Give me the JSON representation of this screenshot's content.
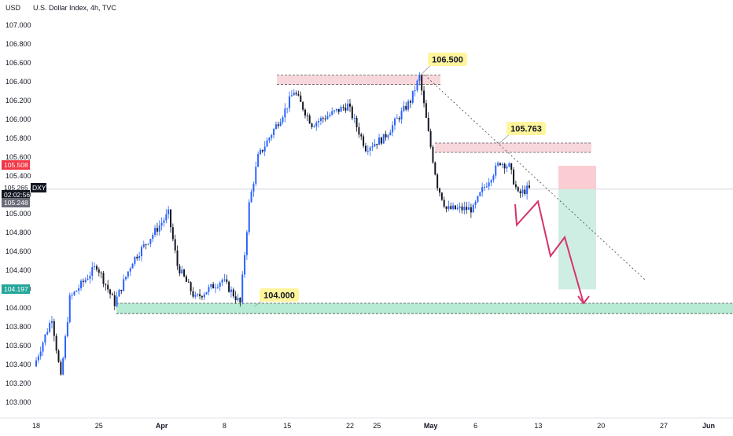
{
  "header": {
    "currency": "USD",
    "symbol": "U.S. Dollar Index, 4h, TVC"
  },
  "colors": {
    "bull": "#2962ff",
    "bear": "#131722",
    "resistance_fill": "#f8d7dc",
    "support_fill": "#b7ebd3",
    "risk_fill": "#f9cdd1",
    "reward_fill": "#cfeee3",
    "projection": "#d6336c",
    "callout_bg": "#fff59d",
    "price_red": "#f23645",
    "price_green": "#26a69a"
  },
  "chart_data": {
    "type": "candlestick",
    "title": "U.S. Dollar Index, 4h, TVC",
    "yticks": [
      "107.000",
      "106.800",
      "106.600",
      "106.400",
      "106.200",
      "106.000",
      "105.800",
      "105.600",
      "105.400",
      "105.200",
      "105.000",
      "104.800",
      "104.600",
      "104.400",
      "104.200",
      "104.000",
      "103.800",
      "103.600",
      "103.400",
      "103.200",
      "103.000"
    ],
    "xticks": [
      "18",
      "25",
      "Apr",
      "8",
      "15",
      "22",
      "25",
      "May",
      "6",
      "13",
      "20",
      "27",
      "Jun"
    ],
    "ylim": [
      102.9,
      107.2
    ],
    "anchor_points": [
      {
        "date": "Mar 18",
        "price": 103.38
      },
      {
        "date": "Mar 20",
        "price": 103.9
      },
      {
        "date": "Mar 21",
        "price": 103.25
      },
      {
        "date": "Mar 22",
        "price": 104.1
      },
      {
        "date": "Mar 25",
        "price": 104.45
      },
      {
        "date": "Mar 27",
        "price": 104.05
      },
      {
        "date": "Mar 29",
        "price": 104.5
      },
      {
        "date": "Apr 2",
        "price": 105.0
      },
      {
        "date": "Apr 3",
        "price": 104.45
      },
      {
        "date": "Apr 5",
        "price": 104.1
      },
      {
        "date": "Apr 8",
        "price": 104.3
      },
      {
        "date": "Apr 10",
        "price": 104.05
      },
      {
        "date": "Apr 11",
        "price": 105.1
      },
      {
        "date": "Apr 12",
        "price": 105.6
      },
      {
        "date": "Apr 15",
        "price": 106.1
      },
      {
        "date": "Apr 16",
        "price": 106.3
      },
      {
        "date": "Apr 18",
        "price": 105.95
      },
      {
        "date": "Apr 22",
        "price": 106.15
      },
      {
        "date": "Apr 24",
        "price": 105.7
      },
      {
        "date": "Apr 26",
        "price": 105.8
      },
      {
        "date": "Apr 29",
        "price": 106.2
      },
      {
        "date": "Apr 30",
        "price": 106.45
      },
      {
        "date": "May 1",
        "price": 105.85
      },
      {
        "date": "May 2",
        "price": 105.3
      },
      {
        "date": "May 3",
        "price": 105.05
      },
      {
        "date": "May 6",
        "price": 105.05
      },
      {
        "date": "May 7",
        "price": 105.25
      },
      {
        "date": "May 9",
        "price": 105.55
      },
      {
        "date": "May 10",
        "price": 105.5
      },
      {
        "date": "May 11",
        "price": 105.2
      },
      {
        "date": "May 12",
        "price": 105.26
      }
    ],
    "zones": {
      "resistance_1": [
        106.37,
        106.47
      ],
      "resistance_2": [
        105.65,
        105.75
      ],
      "support": [
        103.94,
        104.05
      ]
    },
    "levels": {
      "high_label": "106.500",
      "mid_label": "105.763",
      "support_label": "104.000"
    },
    "position": {
      "entry": 105.26,
      "stop": 105.508,
      "target": 104.197
    },
    "projection_path": [
      105.1,
      104.88,
      105.13,
      104.55,
      104.75,
      104.05
    ],
    "price_tags": {
      "stop_price": "105.508",
      "current_price": "105.265",
      "ticker": "DXY",
      "countdown": "02:02:56",
      "entry_price": "105.248",
      "target_price": "104.197"
    }
  }
}
